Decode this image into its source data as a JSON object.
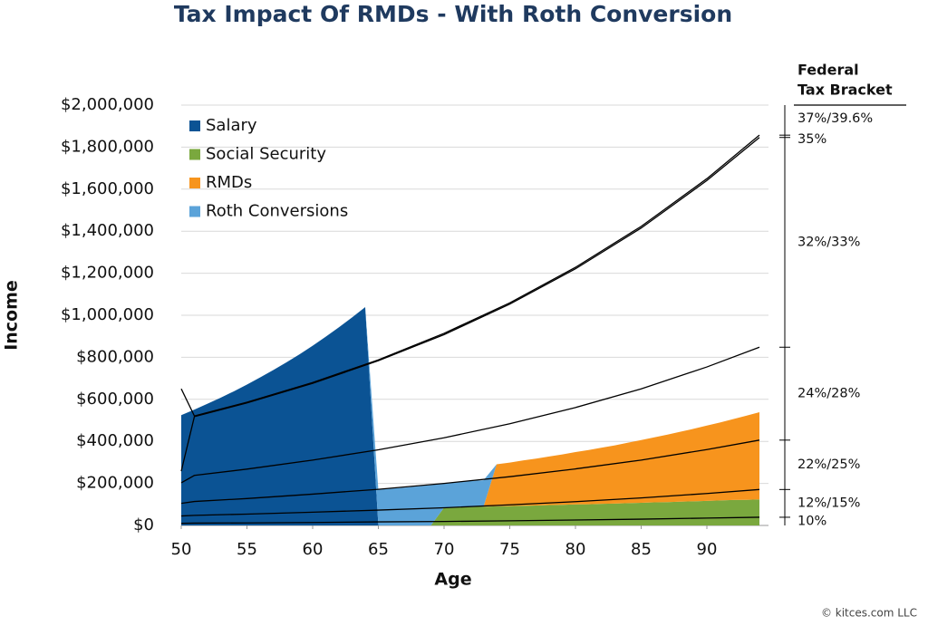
{
  "chart_data": {
    "type": "area",
    "stacked": true,
    "title": "Tax Impact Of RMDs - With Roth Conversion",
    "x_label": "Age",
    "y_label": "Income",
    "legend": "upper left",
    "grid": true,
    "x": [
      50,
      51,
      52,
      53,
      54,
      55,
      56,
      57,
      58,
      59,
      60,
      61,
      62,
      63,
      64,
      65,
      66,
      67,
      68,
      69,
      70,
      71,
      72,
      73,
      74,
      75,
      76,
      77,
      78,
      79,
      80,
      81,
      82,
      83,
      84,
      85,
      86,
      87,
      88,
      89,
      90,
      91,
      92,
      93,
      94
    ],
    "xlim": [
      50,
      95
    ],
    "xticks": [
      50,
      55,
      60,
      65,
      70,
      75,
      80,
      85,
      90
    ],
    "ylim": [
      0,
      2000000
    ],
    "yticks": [
      {
        "value": 0,
        "label": "$0"
      },
      {
        "value": 200000,
        "label": "$200,000"
      },
      {
        "value": 400000,
        "label": "$400,000"
      },
      {
        "value": 600000,
        "label": "$600,000"
      },
      {
        "value": 800000,
        "label": "$800,000"
      },
      {
        "value": 1000000,
        "label": "$1,000,000"
      },
      {
        "value": 1200000,
        "label": "$1,200,000"
      },
      {
        "value": 1400000,
        "label": "$1,400,000"
      },
      {
        "value": 1600000,
        "label": "$1,600,000"
      },
      {
        "value": 1800000,
        "label": "$1,800,000"
      },
      {
        "value": 2000000,
        "label": "$2,000,000"
      }
    ],
    "series": [
      {
        "name": "Salary",
        "color": "#0b5394",
        "values": [
          525000,
          551000,
          579000,
          608000,
          638000,
          670000,
          704000,
          739000,
          776000,
          814000,
          855000,
          898000,
          943000,
          990000,
          1039000,
          0,
          0,
          0,
          0,
          0,
          0,
          0,
          0,
          0,
          0,
          0,
          0,
          0,
          0,
          0,
          0,
          0,
          0,
          0,
          0,
          0,
          0,
          0,
          0,
          0,
          0,
          0,
          0,
          0,
          0
        ]
      },
      {
        "name": "Social Security",
        "color": "#7aa83e",
        "values": [
          0,
          0,
          0,
          0,
          0,
          0,
          0,
          0,
          0,
          0,
          0,
          0,
          0,
          0,
          0,
          0,
          0,
          0,
          0,
          0,
          85000,
          86000,
          88000,
          89000,
          91000,
          92000,
          94000,
          95000,
          97000,
          98000,
          100000,
          101000,
          103000,
          104000,
          106000,
          108000,
          110000,
          111000,
          113000,
          115000,
          117000,
          119000,
          121000,
          122000,
          124000
        ]
      },
      {
        "name": "RMDs",
        "color": "#f7941d",
        "values": [
          0,
          0,
          0,
          0,
          0,
          0,
          0,
          0,
          0,
          0,
          0,
          0,
          0,
          0,
          0,
          0,
          0,
          0,
          0,
          0,
          0,
          0,
          0,
          0,
          200000,
          207000,
          215000,
          223000,
          231000,
          240000,
          249000,
          258000,
          267000,
          277000,
          288000,
          298000,
          309000,
          321000,
          333000,
          345000,
          358000,
          371000,
          385000,
          400000,
          415000
        ]
      },
      {
        "name": "Roth Conversions",
        "color": "#5ba3d9",
        "values": [
          0,
          0,
          0,
          0,
          0,
          0,
          0,
          0,
          0,
          0,
          0,
          0,
          0,
          0,
          0,
          170000,
          175000,
          180000,
          186000,
          192000,
          117000,
          121000,
          124000,
          126000,
          0,
          0,
          0,
          0,
          0,
          0,
          0,
          0,
          0,
          0,
          0,
          0,
          0,
          0,
          0,
          0,
          0,
          0,
          0,
          0,
          0
        ]
      }
    ],
    "brackets": {
      "title": [
        "Federal",
        "Tax Bracket"
      ],
      "top_label": "37%/39.6%",
      "color": "#000000",
      "lines": [
        {
          "name": "10%",
          "x": [
            50,
            51,
            55,
            60,
            65,
            70,
            75,
            80,
            85,
            90,
            94
          ],
          "values": [
            10000,
            11000,
            12000,
            14000,
            17000,
            19000,
            22000,
            26000,
            30000,
            35000,
            39000
          ]
        },
        {
          "name": "12%/15%",
          "x": [
            50,
            51,
            55,
            60,
            65,
            70,
            75,
            80,
            85,
            90,
            94
          ],
          "values": [
            45000,
            48000,
            54000,
            63000,
            73000,
            84000,
            98000,
            113000,
            131000,
            152000,
            171000
          ]
        },
        {
          "name": "22%/25%",
          "x": [
            50,
            51,
            55,
            60,
            65,
            70,
            75,
            80,
            85,
            90,
            94
          ],
          "values": [
            105000,
            114000,
            128000,
            149000,
            172000,
            200000,
            232000,
            269000,
            311000,
            361000,
            406000
          ]
        },
        {
          "name": "24%/28%",
          "x": [
            50,
            51,
            55,
            60,
            65,
            70,
            75,
            80,
            85,
            90,
            94
          ],
          "values": [
            203000,
            238000,
            268000,
            311000,
            360000,
            417000,
            484000,
            561000,
            650000,
            754000,
            848000
          ]
        },
        {
          "name": "32%/33%",
          "x": [
            50,
            51,
            55,
            60,
            65,
            70,
            75,
            80,
            85,
            90,
            94
          ],
          "values": [
            258000,
            518000,
            583000,
            676000,
            784000,
            908000,
            1053000,
            1221000,
            1415000,
            1641000,
            1846000
          ]
        },
        {
          "name": "35%",
          "x": [
            50,
            51,
            55,
            60,
            65,
            70,
            75,
            80,
            85,
            90,
            94
          ],
          "values": [
            650000,
            521000,
            586000,
            680000,
            788000,
            914000,
            1059000,
            1228000,
            1423000,
            1650000,
            1857000
          ]
        }
      ]
    },
    "source": "© kitces.com LLC"
  }
}
